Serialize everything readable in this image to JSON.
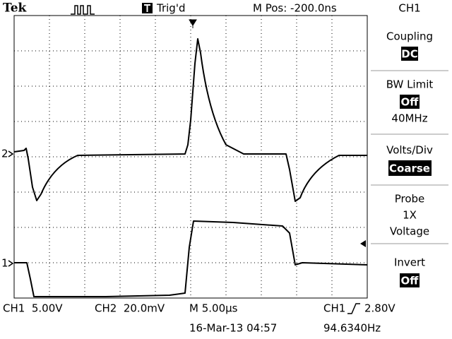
{
  "header": {
    "brand": "Tek",
    "status": "Trig'd",
    "position": "M Pos: -200.0ns"
  },
  "menu": {
    "title": "CH1",
    "coupling": {
      "label": "Coupling",
      "value": "DC"
    },
    "bw_limit": {
      "label": "BW Limit",
      "value": "Off",
      "detail": "40MHz"
    },
    "volts_div": {
      "label": "Volts/Div",
      "value": "Coarse"
    },
    "probe": {
      "label": "Probe",
      "value": "1X",
      "detail": "Voltage"
    },
    "invert": {
      "label": "Invert",
      "value": "Off"
    }
  },
  "markers": {
    "ch2": "2",
    "ch1": "1"
  },
  "footer": {
    "ch1_scale": "CH1  5.00V",
    "ch2_scale": "CH2  20.0mV",
    "timebase": "M 5.00µs",
    "trigger_source": "CH1",
    "trigger_level": "2.80V",
    "date": "16-Mar-13 04:57",
    "frequency": "94.6340Hz"
  }
}
